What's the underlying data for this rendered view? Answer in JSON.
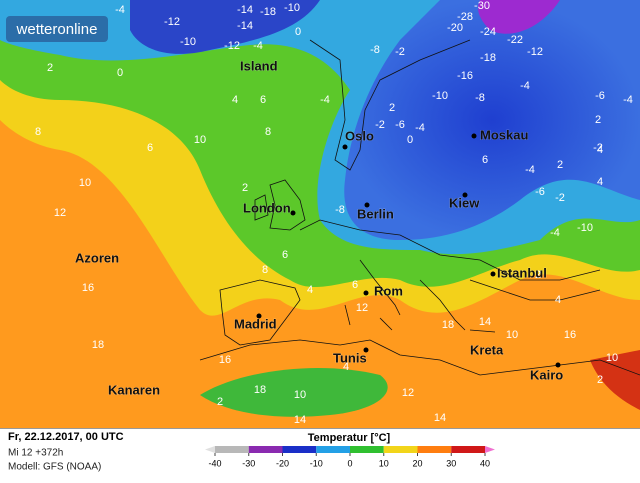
{
  "map": {
    "logo": "wetteronline",
    "cities": [
      "Island",
      "Oslo",
      "Moskau",
      "Kiew",
      "London",
      "Berlin",
      "Azoren",
      "Madrid",
      "Rom",
      "Istanbul",
      "Tunis",
      "Kreta",
      "Kairo",
      "Kanaren"
    ],
    "temperature_labels": [
      -4,
      -12,
      -10,
      -14,
      -10,
      0,
      -14,
      -12,
      -18,
      -4,
      -28,
      -30,
      -20,
      -24,
      -22,
      -18,
      -12,
      -16,
      -10,
      -8,
      -4,
      -6,
      -4,
      2,
      0,
      -8,
      -2,
      4,
      6,
      -2,
      -4,
      2,
      0,
      -6,
      -2,
      8,
      10,
      6,
      8,
      4,
      -4,
      -4,
      -10,
      -6,
      -2,
      -4,
      2,
      2,
      10,
      12,
      16,
      8,
      18,
      -8,
      6,
      6,
      4,
      16,
      18,
      14,
      2,
      10,
      4,
      12,
      18,
      14,
      10,
      2,
      4,
      16,
      14,
      2,
      2,
      4,
      6,
      10,
      12
    ]
  },
  "footer": {
    "date": "Fr, 22.12.2017, 00 UTC",
    "run": "Mi 12 +372h",
    "model": "Modell: GFS (NOAA)"
  },
  "legend": {
    "title": "Temperatur [°C]",
    "ticks": [
      -40,
      -30,
      -20,
      -10,
      0,
      10,
      20,
      30,
      40
    ]
  }
}
